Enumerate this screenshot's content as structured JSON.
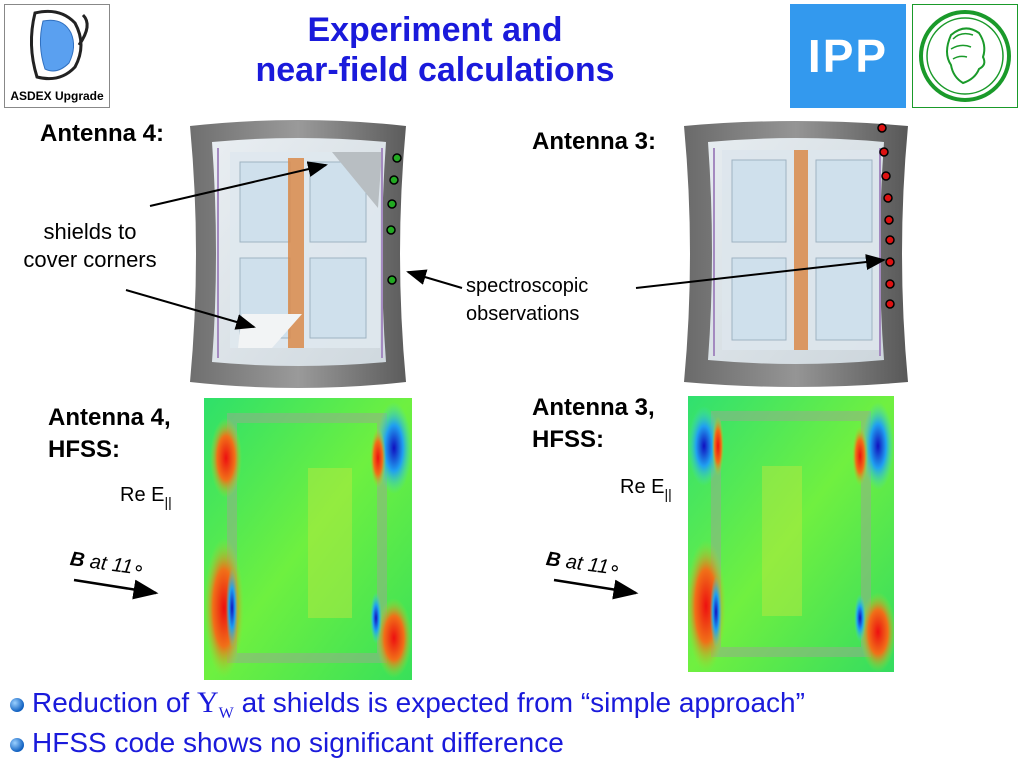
{
  "title": {
    "line1": "Experiment and",
    "line2": "near-field calculations"
  },
  "logos": {
    "asdex_label": "ASDEX Upgrade",
    "ipp_label": "IPP"
  },
  "photos": {
    "antenna4_label": "Antenna 4:",
    "antenna3_label": "Antenna 3:"
  },
  "annotations": {
    "shields_line1": "shields to",
    "shields_line2": "cover corners",
    "spectro_line1": "spectroscopic",
    "spectro_line2": "observations"
  },
  "hfss": {
    "antenna4_line1": "Antenna 4,",
    "antenna4_line2": "HFSS:",
    "antenna3_line1": "Antenna 3,",
    "antenna3_line2": "HFSS:",
    "re_e_main": "Re E",
    "re_e_sub": "||",
    "b_label": "B",
    "b_at": "at 11",
    "b_deg": "∘"
  },
  "bullets": {
    "line1_pre": "Reduction of",
    "line1_symbol": "Y",
    "line1_sub": "W",
    "line1_post": "at shields is expected from “simple approach”",
    "line2": "HFSS code shows no significant difference"
  },
  "colors": {
    "title_blue": "#1a1adb",
    "ipp_blue": "#3399ee",
    "mpg_green": "#1a9a2a",
    "obs_green": "#22aa22",
    "obs_red": "#dd1111"
  }
}
